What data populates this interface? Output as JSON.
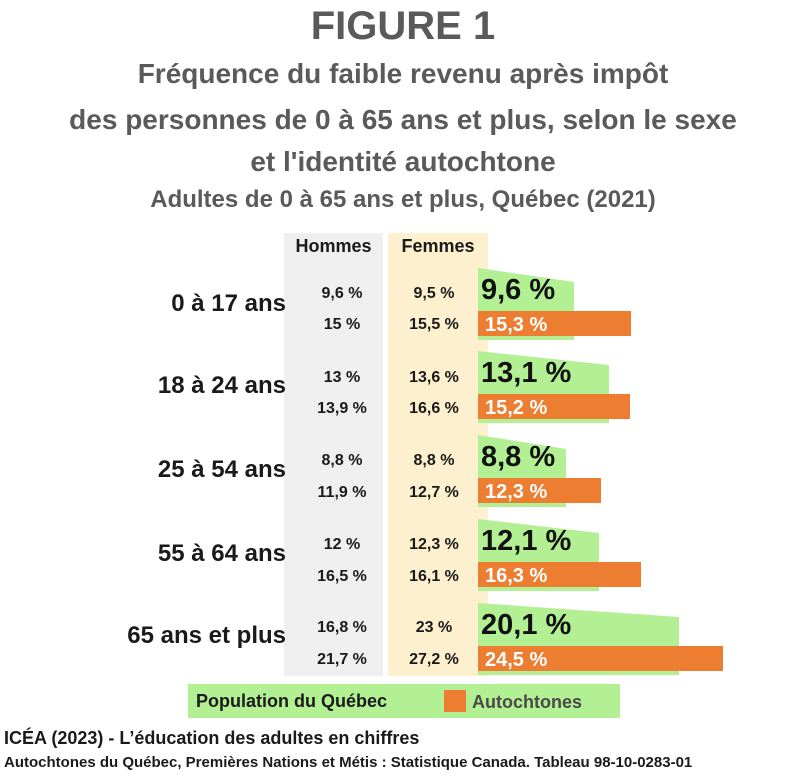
{
  "figure_label": "FIGURE 1",
  "subtitle_lines": [
    "Fréquence du faible revenu après impôt",
    "des personnes de 0 à 65 ans et plus, selon le sexe",
    "et l'identité autochtone"
  ],
  "subtitle_context": "Adultes de 0 à 65 ans et plus, Québec (2021)",
  "column_headers": {
    "men": "Hommes",
    "women": "Femmes"
  },
  "colors": {
    "quebec": "#b3f094",
    "autochtones": "#ed7d31",
    "men_col": "#efefef",
    "women_col": "#fdf0cf",
    "title": "#5a5a5a"
  },
  "legend": {
    "quebec": "Population du Québec",
    "autochtones": "Autochtones"
  },
  "source": {
    "line1": "ICÉA (2023) - L’éducation des adultes en chiffres",
    "line2": "Autochtones du Québec, Premières Nations et Métis : Statistique Canada. Tableau 98-10-0283-01"
  },
  "chart_data": {
    "type": "bar",
    "orientation": "horizontal",
    "categories": [
      "0 à 17 ans",
      "18 à 24 ans",
      "25 à 54 ans",
      "55 à 64 ans",
      "65 ans et plus"
    ],
    "series": [
      {
        "name": "Population du Québec",
        "values": [
          9.6,
          13.1,
          8.8,
          12.1,
          20.1
        ],
        "labels": [
          "9,6 %",
          "13,1 %",
          "8,8 %",
          "12,1 %",
          "20,1 %"
        ]
      },
      {
        "name": "Autochtones",
        "values": [
          15.3,
          15.2,
          12.3,
          16.3,
          24.5
        ],
        "labels": [
          "15,3 %",
          "15,2 %",
          "12,3 %",
          "16,3 %",
          "24,5 %"
        ]
      }
    ],
    "table": {
      "Hommes": {
        "population_du_quebec": [
          "9,6 %",
          "13 %",
          "8,8 %",
          "12 %",
          "16,8 %"
        ],
        "autochtones": [
          "15 %",
          "13,9 %",
          "11,9 %",
          "16,5 %",
          "21,7 %"
        ]
      },
      "Femmes": {
        "population_du_quebec": [
          "9,5 %",
          "13,6 %",
          "8,8 %",
          "12,3 %",
          "23 %"
        ],
        "autochtones": [
          "15,5 %",
          "16,6 %",
          "12,7 %",
          "16,1 %",
          "27,2 %"
        ]
      }
    }
  }
}
